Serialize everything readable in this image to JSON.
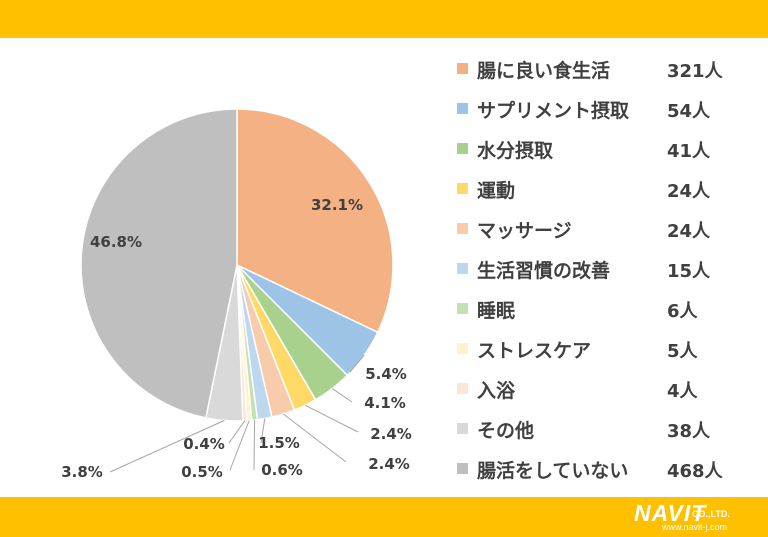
{
  "chart_data": {
    "type": "pie",
    "categories": [
      "腸に良い食生活",
      "サプリメント摂取",
      "水分摂取",
      "運動",
      "マッサージ",
      "生活習慣の改善",
      "睡眠",
      "ストレスケア",
      "入浴",
      "その他",
      "腸活をしていない"
    ],
    "values": [
      321,
      54,
      41,
      24,
      24,
      15,
      6,
      5,
      4,
      38,
      468
    ],
    "value_labels": [
      "321人",
      "54人",
      "41人",
      "24人",
      "24人",
      "15人",
      "6人",
      "5人",
      "4人",
      "38人",
      "468人"
    ],
    "percent_labels": [
      "32.1%",
      "5.4%",
      "4.1%",
      "2.4%",
      "2.4%",
      "1.5%",
      "0.6%",
      "0.5%",
      "0.4%",
      "3.8%",
      "46.8%"
    ],
    "colors": [
      "#F4B183",
      "#9DC3E6",
      "#A9D18E",
      "#FFD966",
      "#F8CBAD",
      "#BDD7EE",
      "#C5E0B4",
      "#FFF2CC",
      "#FBE5D6",
      "#D9D9D9",
      "#BFBFBF"
    ],
    "start_angle_deg": 0,
    "direction": "clockwise",
    "legend_position": "right"
  },
  "branding": {
    "logo_main": "NAVIT",
    "logo_suffix": "CO.,LTD.",
    "logo_url": "www.navit-j.com"
  }
}
